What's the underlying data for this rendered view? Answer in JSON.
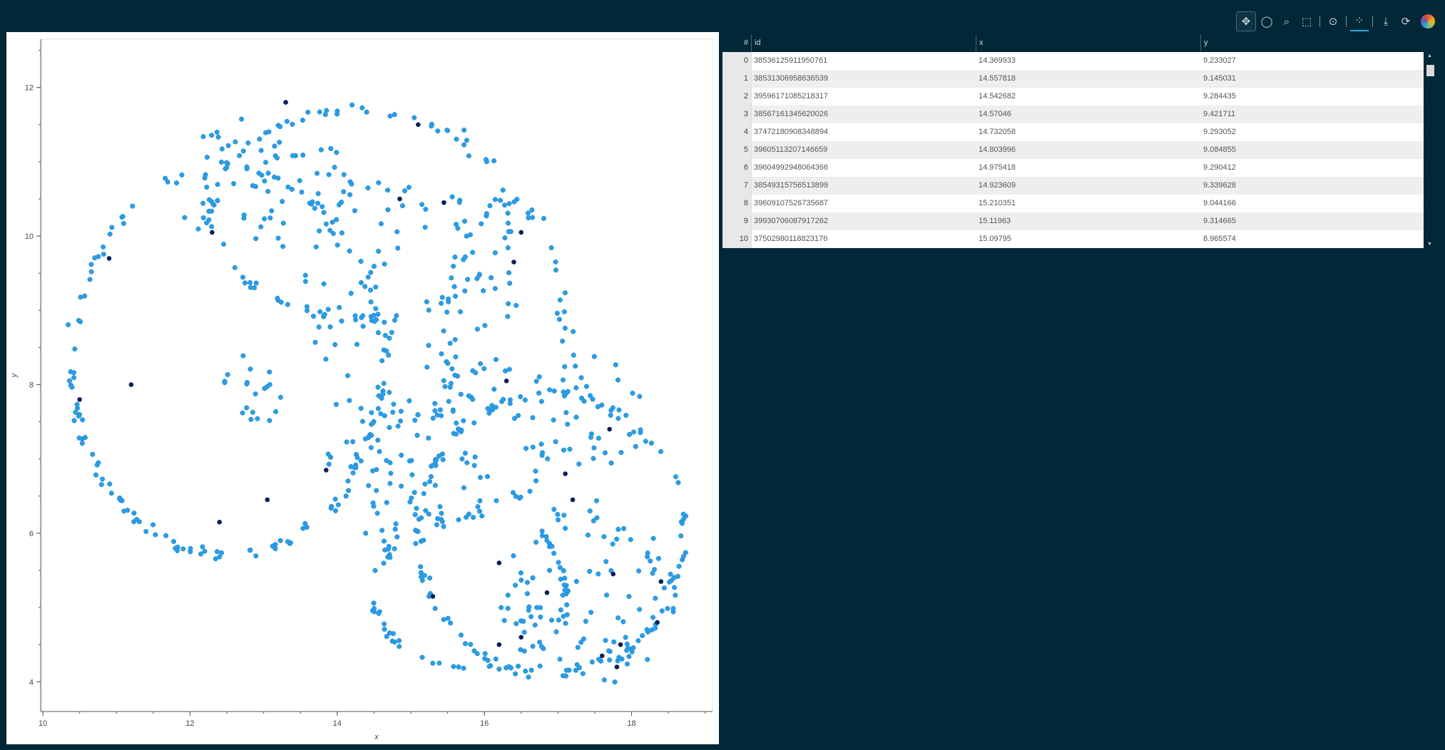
{
  "toolbar": {
    "tools": [
      {
        "name": "pan-tool",
        "icon": "move-arrows-icon",
        "glyph": "✥",
        "active": true
      },
      {
        "name": "lasso-tool",
        "icon": "lasso-icon",
        "glyph": "◯"
      },
      {
        "name": "zoom-tool",
        "icon": "magnifier-icon",
        "glyph": "⌕"
      },
      {
        "name": "box-select-tool",
        "icon": "dashed-box-icon",
        "glyph": "⬚"
      },
      {
        "name": "sep"
      },
      {
        "name": "tap-tool",
        "icon": "tap-select-icon",
        "glyph": "⊙"
      },
      {
        "name": "sep"
      },
      {
        "name": "hover-tool",
        "icon": "crosshair-select-icon",
        "glyph": "⁘",
        "toggled": true
      },
      {
        "name": "sep"
      },
      {
        "name": "save-tool",
        "icon": "download-icon",
        "glyph": "⤓"
      },
      {
        "name": "reset-tool",
        "icon": "refresh-icon",
        "glyph": "⟳"
      }
    ]
  },
  "chart_data": {
    "type": "scatter",
    "xlabel": "x",
    "ylabel": "y",
    "xlim": [
      9.97,
      19.1
    ],
    "ylim": [
      3.6,
      12.65
    ],
    "xticks": [
      "10",
      "12",
      "14",
      "16",
      "18"
    ],
    "yticks": [
      "4",
      "6",
      "8",
      "10",
      "12"
    ],
    "grid": false,
    "point_color": "#2b9de5",
    "highlight_color": "#0b1f5c",
    "highlight_points": [
      [
        13.3,
        11.8
      ],
      [
        15.1,
        11.5
      ],
      [
        12.3,
        10.05
      ],
      [
        16.5,
        10.05
      ],
      [
        10.9,
        9.7
      ],
      [
        11.2,
        8.0
      ],
      [
        10.5,
        7.8
      ],
      [
        13.85,
        6.85
      ],
      [
        13.05,
        6.45
      ],
      [
        12.4,
        6.15
      ],
      [
        15.45,
        10.45
      ],
      [
        16.3,
        8.05
      ],
      [
        17.1,
        6.8
      ],
      [
        16.2,
        5.6
      ],
      [
        17.75,
        5.45
      ],
      [
        18.4,
        5.35
      ],
      [
        15.3,
        5.15
      ],
      [
        16.2,
        4.5
      ],
      [
        16.5,
        4.6
      ],
      [
        17.85,
        4.5
      ],
      [
        17.8,
        4.2
      ],
      [
        18.35,
        4.8
      ],
      [
        16.4,
        9.65
      ],
      [
        14.85,
        10.5
      ],
      [
        17.2,
        6.45
      ],
      [
        16.85,
        5.2
      ],
      [
        17.6,
        4.35
      ],
      [
        17.7,
        7.4
      ]
    ]
  },
  "table": {
    "columns": [
      "#",
      "id",
      "x",
      "y"
    ],
    "rows": [
      [
        "0",
        "38536125911950761",
        "14.369933",
        "9.233027"
      ],
      [
        "1",
        "38531306958636539",
        "14.557818",
        "9.145031"
      ],
      [
        "2",
        "39596171085218317",
        "14.542682",
        "9.284435"
      ],
      [
        "3",
        "38567161345620026",
        "14.57046",
        "9.421711"
      ],
      [
        "4",
        "37472180908348894",
        "14.732058",
        "9.293052"
      ],
      [
        "5",
        "39605113207146659",
        "14.803996",
        "9.084855"
      ],
      [
        "6",
        "39604992948064366",
        "14.975418",
        "9.290412"
      ],
      [
        "7",
        "38549315756513899",
        "14.923609",
        "9.339628"
      ],
      [
        "8",
        "39609107526735687",
        "15.210351",
        "9.044166"
      ],
      [
        "9",
        "39930706087917262",
        "15.11963",
        "9.314665"
      ],
      [
        "10",
        "37502980118823176",
        "15.09795",
        "8.965574"
      ]
    ]
  }
}
